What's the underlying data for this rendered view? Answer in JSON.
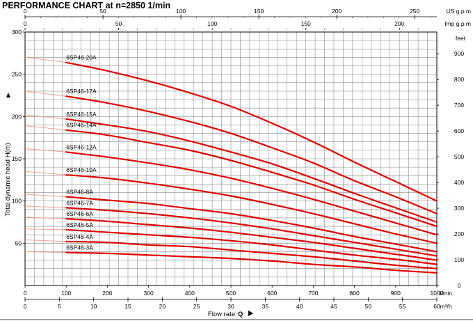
{
  "chart_data": {
    "type": "line",
    "title": "PERFORMANCE CHART  at  n=2850 1/min",
    "ylabel": "Total dynamic head H(m)",
    "ylabel_right": "feet",
    "xlabel": "Flow rate",
    "xlabel_symbol": "Q",
    "x_unit_lmin": "l/min",
    "x_unit_m3h": "m³/h",
    "x_unit_usgpm": "US g.p.m",
    "x_unit_impgpm": "Imp g.p.m",
    "xlim": [
      0,
      1000
    ],
    "ylim": [
      0,
      300
    ],
    "grid": true,
    "x_ticks_lmin": [
      "0",
      "100",
      "200",
      "300",
      "400",
      "500",
      "600",
      "700",
      "800",
      "900",
      "1000"
    ],
    "x_ticks_m3h": [
      "0",
      "5",
      "10",
      "15",
      "20",
      "25",
      "30",
      "35",
      "40",
      "45",
      "50",
      "55",
      "60"
    ],
    "x_ticks_usgpm": [
      "0",
      "50",
      "100",
      "150",
      "200",
      "250"
    ],
    "x_ticks_impgpm": [
      "0",
      "50",
      "100",
      "150",
      "200"
    ],
    "y_ticks_m": [
      "50",
      "100",
      "150",
      "200",
      "250",
      "300"
    ],
    "y_ticks_feet": [
      "0",
      "100",
      "200",
      "300",
      "400",
      "500",
      "600",
      "700",
      "800",
      "900"
    ],
    "x": [
      100,
      200,
      300,
      400,
      500,
      600,
      700,
      800,
      900,
      1000
    ],
    "series": [
      {
        "name": "6SP46-20A",
        "y_at_0": 270,
        "values": [
          264,
          254,
          242,
          228,
          212,
          192,
          170,
          146,
          123,
          100
        ]
      },
      {
        "name": "6SP46-17A",
        "y_at_0": 230,
        "values": [
          224,
          216,
          206,
          194,
          180,
          163,
          145,
          124,
          105,
          85
        ]
      },
      {
        "name": "6SP46-15A",
        "y_at_0": 202,
        "values": [
          197,
          190,
          182,
          171,
          158,
          144,
          127,
          109,
          92,
          75
        ]
      },
      {
        "name": "6SP46-14A",
        "y_at_0": 189,
        "values": [
          184,
          178,
          169,
          160,
          148,
          134,
          119,
          102,
          86,
          70
        ]
      },
      {
        "name": "6SP46-12A",
        "y_at_0": 162,
        "values": [
          158,
          152,
          145,
          137,
          127,
          115,
          102,
          88,
          74,
          60
        ]
      },
      {
        "name": "6SP46-10A",
        "y_at_0": 135,
        "values": [
          131,
          127,
          121,
          114,
          106,
          96,
          85,
          73,
          61,
          50
        ]
      },
      {
        "name": "6SP46-8A",
        "y_at_0": 108,
        "values": [
          105,
          101,
          97,
          91,
          85,
          77,
          68,
          58,
          49,
          40
        ]
      },
      {
        "name": "6SP46-7A",
        "y_at_0": 94,
        "values": [
          92,
          89,
          85,
          80,
          74,
          67,
          59,
          51,
          43,
          35
        ]
      },
      {
        "name": "6SP46-6A",
        "y_at_0": 81,
        "values": [
          79,
          76,
          72,
          68,
          63,
          57,
          51,
          44,
          37,
          30
        ]
      },
      {
        "name": "6SP46-5A",
        "y_at_0": 67,
        "values": [
          66,
          63,
          60,
          57,
          53,
          48,
          42,
          36,
          31,
          25
        ]
      },
      {
        "name": "6SP46-4A",
        "y_at_0": 54,
        "values": [
          52,
          51,
          48,
          46,
          42,
          38,
          34,
          29,
          24,
          20
        ]
      },
      {
        "name": "6SP46-3A",
        "y_at_0": 40,
        "values": [
          39,
          38,
          36,
          34,
          32,
          29,
          25,
          22,
          18,
          15
        ]
      }
    ]
  },
  "colors": {
    "curve": "#e00000",
    "extension": "#f0a090",
    "grid": "#8c8c8c",
    "axis": "#000000"
  }
}
